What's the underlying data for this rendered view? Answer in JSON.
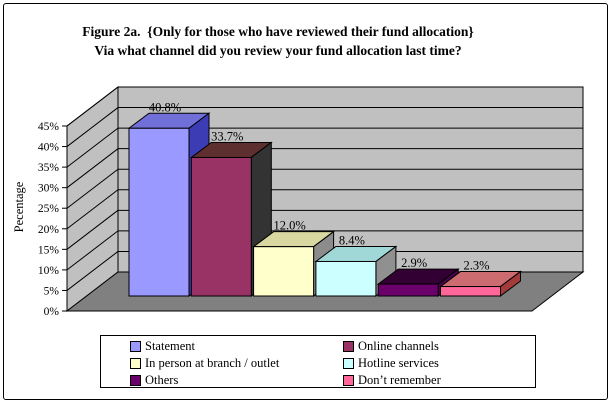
{
  "chart_data": {
    "type": "bar",
    "projection": "3d",
    "title_line1": "Figure 2a.  {Only for those who have reviewed their fund allocation}",
    "title_line2": "Via what channel did you review your fund allocation last time?",
    "ylabel": "Pecentage",
    "ylim": [
      0,
      45
    ],
    "ytick_step": 5,
    "yticks": [
      "0%",
      "5%",
      "10%",
      "15%",
      "20%",
      "25%",
      "30%",
      "35%",
      "40%",
      "45%"
    ],
    "grid": true,
    "legend_position": "bottom",
    "categories": [
      "Statement",
      "Online channels",
      "In person at branch / outlet",
      "Hotline services",
      "Others",
      "Don’t remember"
    ],
    "values": [
      40.8,
      33.7,
      12.0,
      8.4,
      2.9,
      2.3
    ],
    "data_labels": [
      "40.8%",
      "33.7%",
      "12.0%",
      "8.4%",
      "2.9%",
      "2.3%"
    ],
    "series": [
      {
        "label": "Statement",
        "value": 40.8,
        "data_label": "40.8%",
        "color": "#9999FF",
        "top_color": "#7070D8",
        "side_color": "#3C3CB4"
      },
      {
        "label": "Online channels",
        "value": 33.7,
        "data_label": "33.7%",
        "color": "#993366",
        "top_color": "#5E2F2F",
        "side_color": "#333333"
      },
      {
        "label": "In person at branch / outlet",
        "value": 12.0,
        "data_label": "12.0%",
        "color": "#FFFFCC",
        "top_color": "#D8D8A0",
        "side_color": "#8C8C8C"
      },
      {
        "label": "Hotline services",
        "value": 8.4,
        "data_label": "8.4%",
        "color": "#CCFFFF",
        "top_color": "#A0D8D8",
        "side_color": "#909090"
      },
      {
        "label": "Others",
        "value": 2.9,
        "data_label": "2.9%",
        "color": "#6B006B",
        "top_color": "#330033",
        "side_color": "#4A004A"
      },
      {
        "label": "Don’t remember",
        "value": 2.3,
        "data_label": "2.3%",
        "color": "#FF6699",
        "top_color": "#CC6B70",
        "side_color": "#A33B3B"
      }
    ],
    "wall_color": "#C0C0C0",
    "floor_color": "#808080",
    "gridline_color": "#000000",
    "text_color": "#000000"
  }
}
